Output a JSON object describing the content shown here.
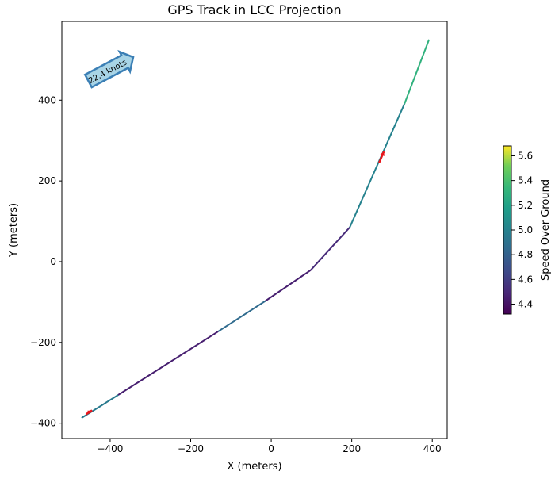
{
  "chart_data": {
    "type": "line",
    "title": "GPS Track in LCC Projection",
    "xlabel": "X (meters)",
    "ylabel": "Y (meters)",
    "xlim": [
      -520,
      437
    ],
    "ylim": [
      -438,
      595
    ],
    "xticks": [
      -400,
      -200,
      0,
      200,
      400
    ],
    "yticks": [
      -400,
      -200,
      0,
      200,
      400
    ],
    "xtick_labels": [
      "−400",
      "−200",
      "0",
      "200",
      "400"
    ],
    "ytick_labels": [
      "−400",
      "−200",
      "0",
      "200",
      "400"
    ],
    "grid": false,
    "segments": [
      {
        "x": [
          -471,
          -380
        ],
        "y": [
          -387,
          -330
        ],
        "speed": 4.95
      },
      {
        "x": [
          -380,
          -132
        ],
        "y": [
          -330,
          -173
        ],
        "speed": 4.45
      },
      {
        "x": [
          -132,
          -14
        ],
        "y": [
          -173,
          -97
        ],
        "speed": 4.85
      },
      {
        "x": [
          -14,
          98
        ],
        "y": [
          -97,
          -21
        ],
        "speed": 4.45
      },
      {
        "x": [
          98,
          195
        ],
        "y": [
          -21,
          85
        ],
        "speed": 4.5
      },
      {
        "x": [
          195,
          331
        ],
        "y": [
          85,
          391
        ],
        "speed": 5.0
      },
      {
        "x": [
          331,
          392
        ],
        "y": [
          391,
          550
        ],
        "speed": 5.3
      }
    ],
    "direction_arrows": [
      {
        "x": -460,
        "y": -378,
        "dx": 15,
        "dy": 10
      },
      {
        "x": 268,
        "y": 245,
        "dx": 12,
        "dy": 28
      }
    ],
    "annotation": {
      "text": "22.4 knots",
      "x": -410,
      "y": 480,
      "angle_deg": 28
    },
    "colorbar": {
      "label": "Speed Over Ground",
      "range": [
        4.32,
        5.68
      ],
      "ticks": [
        4.4,
        4.6,
        4.8,
        5.0,
        5.2,
        5.4,
        5.6
      ],
      "tick_labels": [
        "4.4",
        "4.6",
        "4.8",
        "5.0",
        "5.2",
        "5.4",
        "5.6"
      ],
      "colormap": "viridis"
    }
  }
}
